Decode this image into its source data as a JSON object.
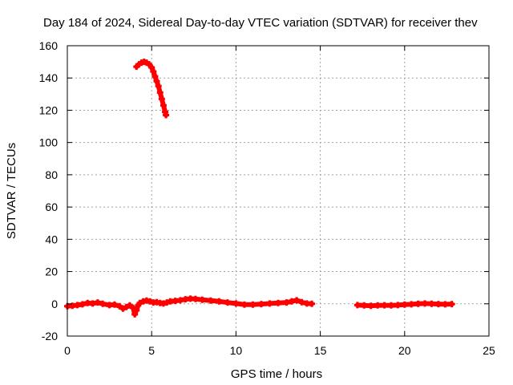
{
  "chart_data": {
    "type": "scatter",
    "title": "Day 184 of 2024, Sidereal Day-to-day VTEC variation (SDTVAR) for receiver thev",
    "xlabel": "GPS time / hours",
    "ylabel": "SDTVAR / TECUs",
    "xlim": [
      0,
      25
    ],
    "ylim": [
      -20,
      160
    ],
    "xticks": [
      0,
      5,
      10,
      15,
      20,
      25
    ],
    "yticks": [
      -20,
      0,
      20,
      40,
      60,
      80,
      100,
      120,
      140,
      160
    ],
    "xtick_labels": [
      "0",
      "5",
      "10",
      "15",
      "20",
      "25"
    ],
    "ytick_labels": [
      "-20",
      "0",
      "20",
      "40",
      "60",
      "80",
      "100",
      "120",
      "140",
      "160"
    ],
    "grid": true,
    "marker": "+",
    "color": "#ff0000",
    "series": [
      {
        "points": [
          [
            0.0,
            -1.5
          ],
          [
            0.3,
            -1.2
          ],
          [
            0.6,
            -0.8
          ],
          [
            0.9,
            -0.3
          ],
          [
            1.2,
            0.5
          ],
          [
            1.5,
            0.2
          ],
          [
            1.8,
            0.8
          ],
          [
            2.1,
            0.0
          ],
          [
            2.5,
            -0.8
          ],
          [
            2.8,
            -0.5
          ],
          [
            3.1,
            -1.5
          ],
          [
            3.3,
            -3.0
          ],
          [
            3.5,
            -2.0
          ],
          [
            3.7,
            -1.0
          ],
          [
            3.9,
            -2.5
          ],
          [
            4.0,
            -6.5
          ],
          [
            4.1,
            -4.0
          ],
          [
            4.2,
            -1.0
          ],
          [
            4.3,
            0.5
          ],
          [
            4.5,
            1.5
          ],
          [
            4.7,
            2.0
          ],
          [
            4.9,
            1.5
          ],
          [
            5.1,
            0.8
          ],
          [
            5.3,
            1.0
          ],
          [
            5.5,
            0.5
          ],
          [
            5.7,
            0.2
          ],
          [
            5.9,
            0.8
          ],
          [
            6.1,
            1.5
          ],
          [
            6.4,
            1.8
          ],
          [
            6.7,
            2.2
          ],
          [
            7.0,
            2.8
          ],
          [
            7.3,
            3.2
          ],
          [
            7.6,
            3.0
          ],
          [
            8.0,
            2.5
          ],
          [
            8.5,
            2.0
          ],
          [
            9.0,
            1.5
          ],
          [
            9.5,
            0.8
          ],
          [
            10.0,
            0.2
          ],
          [
            10.5,
            -0.5
          ],
          [
            11.0,
            -0.5
          ],
          [
            11.5,
            -0.2
          ],
          [
            12.0,
            0.2
          ],
          [
            12.5,
            0.5
          ],
          [
            13.0,
            0.8
          ],
          [
            13.3,
            1.5
          ],
          [
            13.6,
            2.2
          ],
          [
            13.9,
            1.0
          ],
          [
            14.2,
            0.2
          ],
          [
            14.5,
            0.0
          ],
          [
            17.2,
            -0.8
          ],
          [
            17.6,
            -1.0
          ],
          [
            18.0,
            -1.2
          ],
          [
            18.4,
            -1.0
          ],
          [
            18.8,
            -0.9
          ],
          [
            19.2,
            -1.0
          ],
          [
            19.6,
            -0.8
          ],
          [
            20.0,
            -0.5
          ],
          [
            20.4,
            -0.3
          ],
          [
            20.8,
            0.0
          ],
          [
            21.2,
            0.2
          ],
          [
            21.6,
            0.0
          ],
          [
            22.0,
            -0.2
          ],
          [
            22.4,
            -0.3
          ],
          [
            22.8,
            -0.2
          ],
          [
            4.1,
            147.0
          ],
          [
            4.25,
            148.5
          ],
          [
            4.4,
            149.5
          ],
          [
            4.55,
            150.0
          ],
          [
            4.7,
            149.5
          ],
          [
            4.85,
            148.5
          ],
          [
            5.0,
            146.5
          ],
          [
            5.1,
            144.0
          ],
          [
            5.2,
            141.0
          ],
          [
            5.3,
            138.0
          ],
          [
            5.4,
            135.0
          ],
          [
            5.5,
            131.0
          ],
          [
            5.6,
            127.0
          ],
          [
            5.7,
            123.0
          ],
          [
            5.8,
            119.0
          ],
          [
            5.85,
            117.0
          ]
        ]
      }
    ]
  }
}
